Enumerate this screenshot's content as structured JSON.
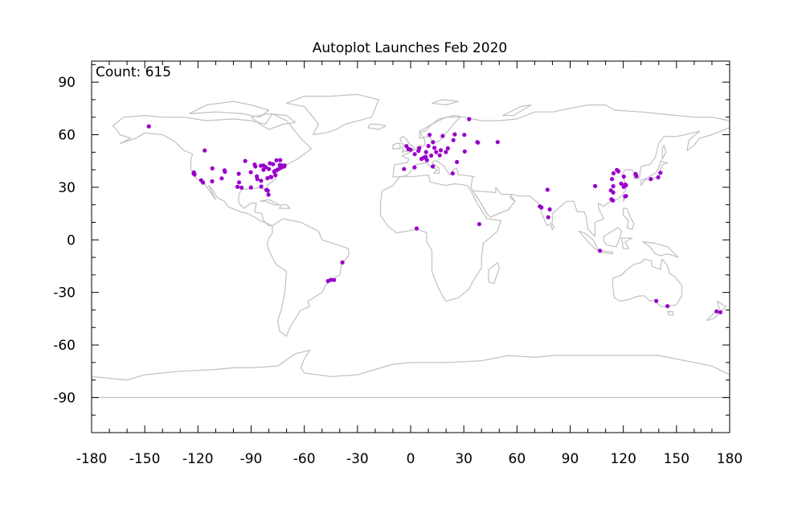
{
  "chart_data": {
    "type": "scatter",
    "title": "Autoplot Launches Feb 2020",
    "annotation": "Count: 615",
    "xlabel": "",
    "ylabel": "",
    "xlim": [
      -180,
      180
    ],
    "ylim": [
      -110,
      102
    ],
    "xticks": [
      -180,
      -150,
      -120,
      -90,
      -60,
      -30,
      0,
      30,
      60,
      90,
      120,
      150,
      180
    ],
    "xtick_labels": [
      "-180",
      "-150",
      "-120",
      "-90",
      "-60",
      "-30",
      "0",
      "30",
      "60",
      "90",
      "120",
      "150",
      "180"
    ],
    "yticks": [
      90,
      60,
      30,
      0,
      -30,
      -60,
      -90
    ],
    "ytick_labels": [
      "90",
      "60",
      "30",
      "0",
      "-30",
      "-60",
      "-90"
    ],
    "grid": false,
    "background_map": "world coastlines and borders",
    "map_color": "#c0c0c0",
    "point_color": "#9900cc",
    "points": [
      [
        -147.7,
        64.8
      ],
      [
        -116.2,
        51.0
      ],
      [
        -122.4,
        37.8
      ],
      [
        -122.0,
        37.4
      ],
      [
        -121.9,
        37.3
      ],
      [
        -122.3,
        38.5
      ],
      [
        -118.2,
        34.0
      ],
      [
        -117.1,
        32.7
      ],
      [
        -111.9,
        40.8
      ],
      [
        -112.0,
        33.4
      ],
      [
        -105.0,
        39.7
      ],
      [
        -106.6,
        35.1
      ],
      [
        -104.8,
        38.8
      ],
      [
        -97.7,
        30.3
      ],
      [
        -96.8,
        32.8
      ],
      [
        -95.4,
        29.8
      ],
      [
        -97.0,
        37.7
      ],
      [
        -93.3,
        45.0
      ],
      [
        -90.2,
        38.6
      ],
      [
        -90.1,
        29.9
      ],
      [
        -88.0,
        43.0
      ],
      [
        -87.6,
        41.9
      ],
      [
        -86.8,
        36.2
      ],
      [
        -86.5,
        34.7
      ],
      [
        -84.4,
        33.7
      ],
      [
        -84.5,
        42.3
      ],
      [
        -84.3,
        30.4
      ],
      [
        -83.0,
        40.0
      ],
      [
        -83.0,
        42.4
      ],
      [
        -81.7,
        41.5
      ],
      [
        -81.4,
        28.5
      ],
      [
        -80.2,
        25.8
      ],
      [
        -80.8,
        35.2
      ],
      [
        -80.0,
        40.4
      ],
      [
        -79.0,
        35.9
      ],
      [
        -79.4,
        43.7
      ],
      [
        -78.6,
        35.8
      ],
      [
        -77.0,
        38.9
      ],
      [
        -76.6,
        39.3
      ],
      [
        -75.2,
        40.0
      ],
      [
        -75.7,
        45.4
      ],
      [
        -74.0,
        40.7
      ],
      [
        -73.6,
        45.5
      ],
      [
        -73.8,
        42.7
      ],
      [
        -72.9,
        41.3
      ],
      [
        -72.5,
        42.4
      ],
      [
        -71.1,
        42.4
      ],
      [
        -71.4,
        41.8
      ],
      [
        -77.6,
        43.2
      ],
      [
        -80.6,
        28.1
      ],
      [
        -76.3,
        36.9
      ],
      [
        -43.2,
        -22.9
      ],
      [
        -46.6,
        -23.5
      ],
      [
        -45.0,
        -22.8
      ],
      [
        -38.5,
        -12.9
      ],
      [
        -3.7,
        40.4
      ],
      [
        -2.3,
        53.5
      ],
      [
        -1.3,
        51.8
      ],
      [
        -0.1,
        51.5
      ],
      [
        2.3,
        48.9
      ],
      [
        3.4,
        6.5
      ],
      [
        2.2,
        41.4
      ],
      [
        4.9,
        52.4
      ],
      [
        4.4,
        50.8
      ],
      [
        6.1,
        46.2
      ],
      [
        7.4,
        46.9
      ],
      [
        8.5,
        47.4
      ],
      [
        8.7,
        50.1
      ],
      [
        9.2,
        45.5
      ],
      [
        10.0,
        53.6
      ],
      [
        11.6,
        48.1
      ],
      [
        12.5,
        41.9
      ],
      [
        13.4,
        52.5
      ],
      [
        14.4,
        50.1
      ],
      [
        16.4,
        48.2
      ],
      [
        18.1,
        59.3
      ],
      [
        10.7,
        59.9
      ],
      [
        12.6,
        55.7
      ],
      [
        21.0,
        52.2
      ],
      [
        19.9,
        50.1
      ],
      [
        17.0,
        51.1
      ],
      [
        24.9,
        60.2
      ],
      [
        24.1,
        56.9
      ],
      [
        23.7,
        37.9
      ],
      [
        26.1,
        44.4
      ],
      [
        30.3,
        59.9
      ],
      [
        30.5,
        50.4
      ],
      [
        37.6,
        55.8
      ],
      [
        38.0,
        55.5
      ],
      [
        38.7,
        9.0
      ],
      [
        49.1,
        55.8
      ],
      [
        33.0,
        68.9
      ],
      [
        72.9,
        19.1
      ],
      [
        77.6,
        12.9
      ],
      [
        78.5,
        17.4
      ],
      [
        77.2,
        28.6
      ],
      [
        73.8,
        18.5
      ],
      [
        106.8,
        -6.2
      ],
      [
        113.3,
        23.1
      ],
      [
        114.1,
        22.5
      ],
      [
        114.3,
        30.6
      ],
      [
        114.5,
        38.0
      ],
      [
        116.4,
        39.9
      ],
      [
        117.2,
        39.1
      ],
      [
        113.6,
        34.7
      ],
      [
        118.8,
        32.1
      ],
      [
        120.2,
        30.3
      ],
      [
        121.5,
        31.2
      ],
      [
        121.0,
        31.5
      ],
      [
        113.0,
        28.2
      ],
      [
        114.3,
        27.0
      ],
      [
        104.1,
        30.7
      ],
      [
        126.9,
        37.6
      ],
      [
        127.4,
        36.4
      ],
      [
        135.5,
        34.7
      ],
      [
        139.7,
        35.7
      ],
      [
        140.9,
        38.3
      ],
      [
        121.5,
        25.0
      ],
      [
        121.0,
        24.8
      ],
      [
        120.3,
        36.1
      ],
      [
        138.6,
        -34.9
      ],
      [
        144.9,
        -37.8
      ],
      [
        172.6,
        -40.8
      ],
      [
        174.8,
        -41.3
      ]
    ]
  }
}
